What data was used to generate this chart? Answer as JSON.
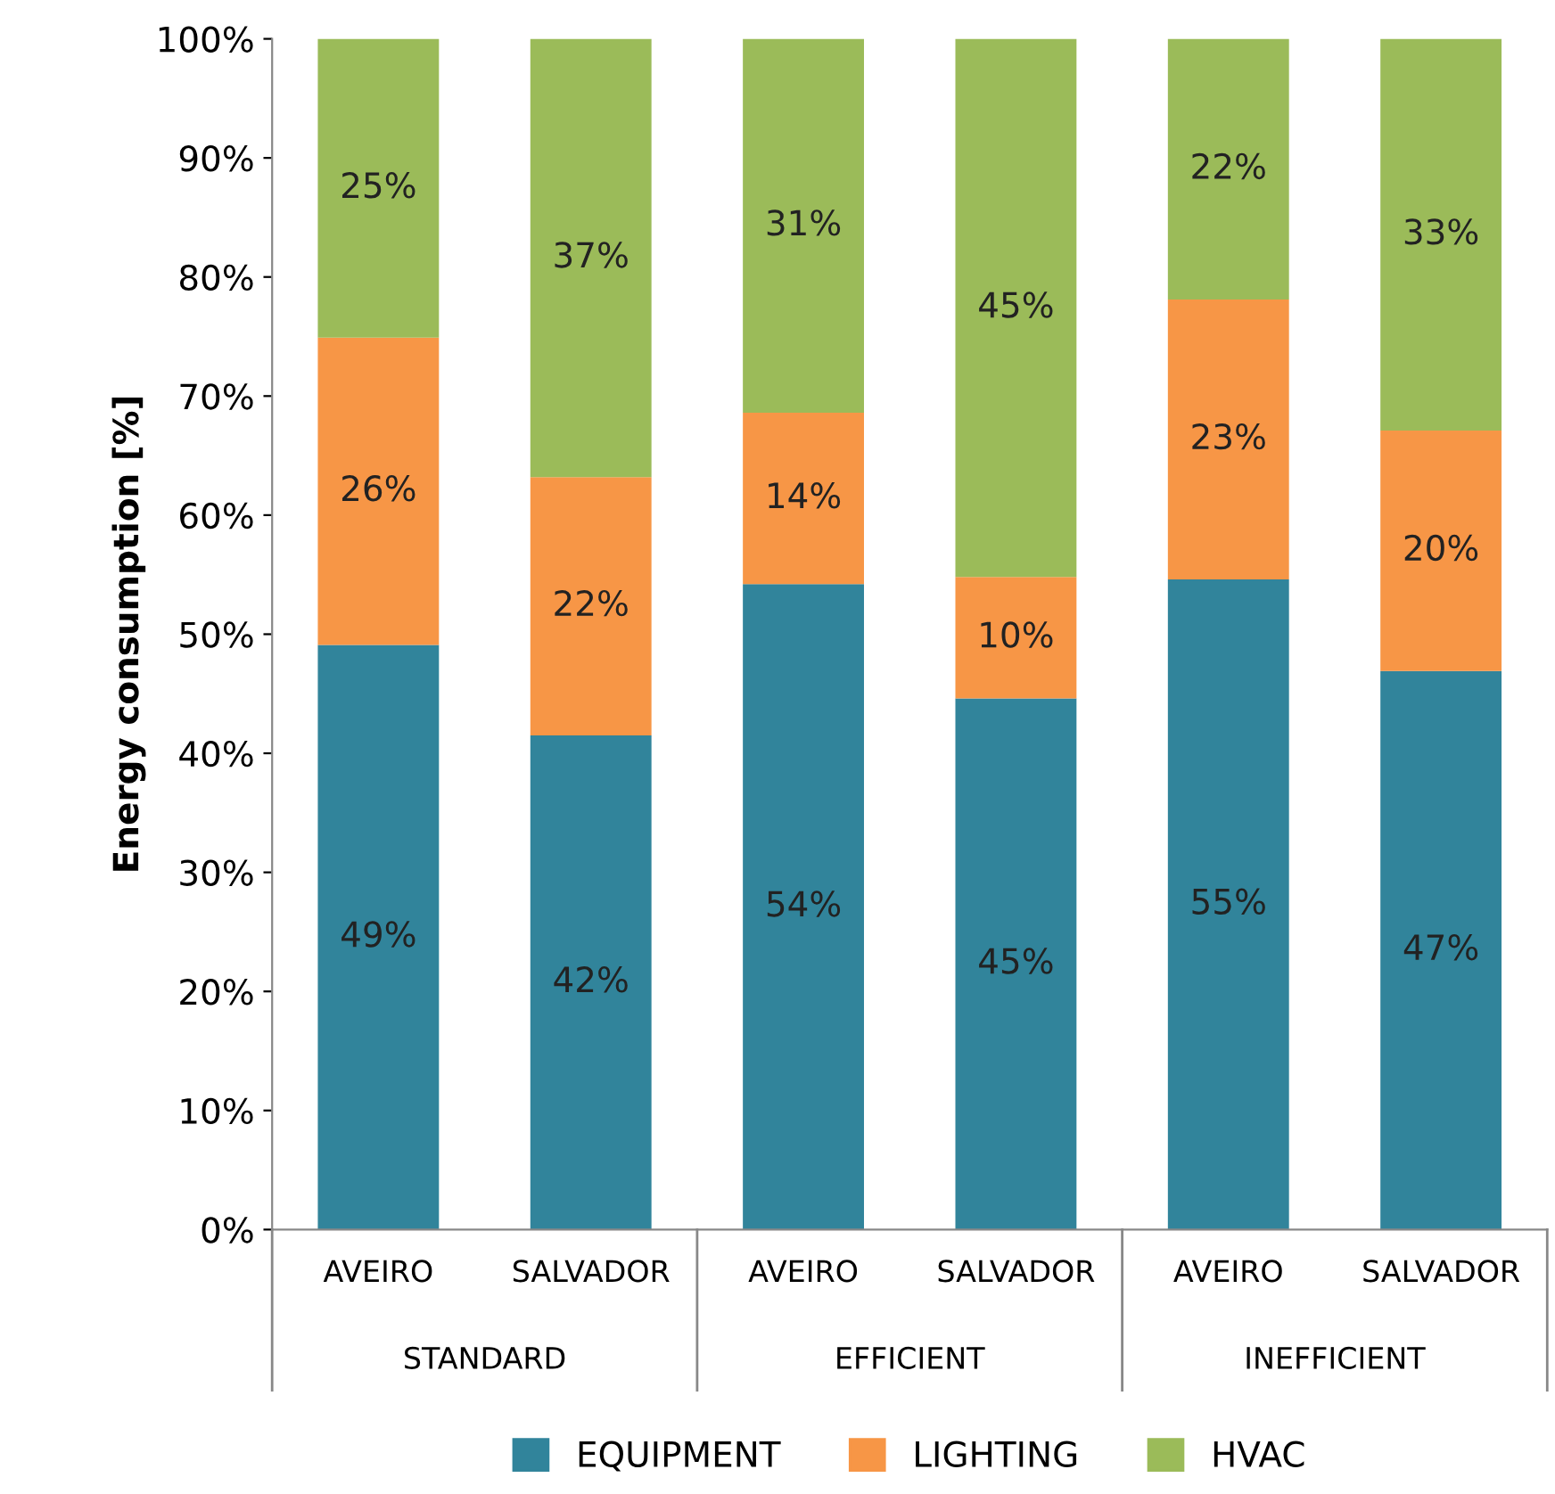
{
  "chart_data": {
    "type": "bar",
    "stacked": true,
    "ylabel": "Energy consumption [%]",
    "categories": [
      "AVEIRO",
      "SALVADOR",
      "AVEIRO",
      "SALVADOR",
      "AVEIRO",
      "SALVADOR"
    ],
    "annotations": [
      "STANDARD",
      "EFFICIENT",
      "INEFFICIENT"
    ],
    "series": [
      {
        "name": "EQUIPMENT",
        "color": "#31849b",
        "values": [
          49.1,
          41.5,
          54.2,
          44.6,
          54.6,
          46.9
        ],
        "value_labels": [
          "49%",
          "42%",
          "54%",
          "45%",
          "55%",
          "47%"
        ]
      },
      {
        "name": "LIGHTING",
        "color": "#f79646",
        "values": [
          25.8,
          21.7,
          14.4,
          10.2,
          23.5,
          20.2
        ],
        "value_labels": [
          "26%",
          "22%",
          "14%",
          "10%",
          "23%",
          "20%"
        ]
      },
      {
        "name": "HVAC",
        "color": "#9bbb59",
        "values": [
          25.1,
          36.8,
          31.4,
          45.2,
          21.9,
          32.9
        ],
        "value_labels": [
          "25%",
          "37%",
          "31%",
          "45%",
          "22%",
          "33%"
        ]
      }
    ],
    "ylim": [
      0,
      100
    ],
    "yticks": [
      {
        "value": 0,
        "label": "0%"
      },
      {
        "value": 10,
        "label": "10%"
      },
      {
        "value": 20,
        "label": "20%"
      },
      {
        "value": 30,
        "label": "30%"
      },
      {
        "value": 40,
        "label": "40%"
      },
      {
        "value": 50,
        "label": "50%"
      },
      {
        "value": 60,
        "label": "60%"
      },
      {
        "value": 70,
        "label": "70%"
      },
      {
        "value": 80,
        "label": "80%"
      },
      {
        "value": 90,
        "label": "90%"
      },
      {
        "value": 100,
        "label": "100%"
      }
    ],
    "grid": false,
    "legend": "bottom"
  }
}
